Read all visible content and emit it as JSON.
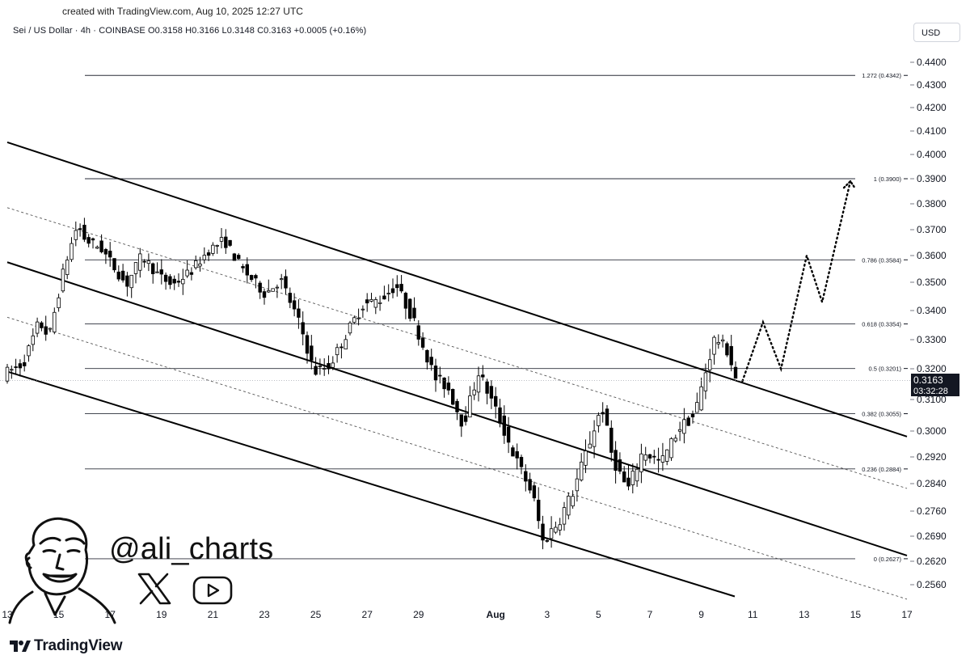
{
  "header": {
    "credit": "created with TradingView.com, Aug 10, 2025 12:27 UTC",
    "legend": "Sei / US Dollar · 4h · COINBASE  O0.3158  H0.3166  L0.3148  C0.3163  +0.0005 (+0.16%)",
    "currency_button": "USD"
  },
  "price_label": {
    "value": "0.3163",
    "countdown": "03:32:28"
  },
  "watermark": {
    "handle": "@ali_charts"
  },
  "branding": {
    "logo_text": "TradingView"
  },
  "colors": {
    "background": "#ffffff",
    "candle": "#000000",
    "channel": "#000000",
    "fib": "#2a2e39",
    "price_tag": "#131722"
  },
  "chart_data": {
    "type": "candlestick",
    "title": "",
    "xlabel": "",
    "ylabel": "",
    "grid": false,
    "ylim": [
      0.2502,
      0.4485
    ],
    "y_tick_labels": [
      {
        "value": 0.44,
        "label": "0.4400"
      },
      {
        "value": 0.43,
        "label": "0.4300"
      },
      {
        "value": 0.42,
        "label": "0.4200"
      },
      {
        "value": 0.41,
        "label": "0.4100"
      },
      {
        "value": 0.4,
        "label": "0.4000"
      },
      {
        "value": 0.39,
        "label": "0.3900"
      },
      {
        "value": 0.38,
        "label": "0.3800"
      },
      {
        "value": 0.37,
        "label": "0.3700"
      },
      {
        "value": 0.36,
        "label": "0.3600"
      },
      {
        "value": 0.35,
        "label": "0.3500"
      },
      {
        "value": 0.34,
        "label": "0.3400"
      },
      {
        "value": 0.33,
        "label": "0.3300"
      },
      {
        "value": 0.32,
        "label": "0.3200"
      },
      {
        "value": 0.31,
        "label": "0.3100"
      },
      {
        "value": 0.3,
        "label": "0.3000"
      },
      {
        "value": 0.292,
        "label": "0.2920"
      },
      {
        "value": 0.284,
        "label": "0.2840"
      },
      {
        "value": 0.276,
        "label": "0.2760"
      },
      {
        "value": 0.269,
        "label": "0.2690"
      },
      {
        "value": 0.262,
        "label": "0.2620"
      },
      {
        "value": 0.256,
        "label": "0.2560"
      }
    ],
    "x_tick_labels": [
      "13",
      "15",
      "17",
      "19",
      "21",
      "23",
      "25",
      "27",
      "29",
      "Aug",
      "3",
      "5",
      "7",
      "9",
      "11",
      "13",
      "15",
      "17"
    ],
    "x_ticks": [
      {
        "t": 0,
        "label": "13"
      },
      {
        "t": 2,
        "label": "15"
      },
      {
        "t": 4,
        "label": "17"
      },
      {
        "t": 6,
        "label": "19"
      },
      {
        "t": 8,
        "label": "21"
      },
      {
        "t": 10,
        "label": "23"
      },
      {
        "t": 12,
        "label": "25"
      },
      {
        "t": 14,
        "label": "27"
      },
      {
        "t": 16,
        "label": "29"
      },
      {
        "t": 19,
        "label": "Aug"
      },
      {
        "t": 21,
        "label": "3"
      },
      {
        "t": 23,
        "label": "5"
      },
      {
        "t": 25,
        "label": "7"
      },
      {
        "t": 27,
        "label": "9"
      },
      {
        "t": 29,
        "label": "11"
      },
      {
        "t": 31,
        "label": "13"
      },
      {
        "t": 33,
        "label": "15"
      },
      {
        "t": 35,
        "label": "17"
      }
    ],
    "fib_levels": [
      {
        "ratio": "1.272",
        "price": 0.4342,
        "label": "1.272 (0.4342)"
      },
      {
        "ratio": "1",
        "price": 0.39,
        "label": "1 (0.3900)"
      },
      {
        "ratio": "0.786",
        "price": 0.3584,
        "label": "0.786 (0.3584)"
      },
      {
        "ratio": "0.618",
        "price": 0.3354,
        "label": "0.618 (0.3354)"
      },
      {
        "ratio": "0.5",
        "price": 0.3201,
        "label": "0.5 (0.3201)"
      },
      {
        "ratio": "0.382",
        "price": 0.3055,
        "label": "0.382 (0.3055)"
      },
      {
        "ratio": "0.236",
        "price": 0.2884,
        "label": "0.236 (0.2884)"
      },
      {
        "ratio": "0",
        "price": 0.2627,
        "label": "0 (0.2627)"
      }
    ],
    "current_price": 0.3163,
    "ohlc_close_reference": "0.3163"
  }
}
